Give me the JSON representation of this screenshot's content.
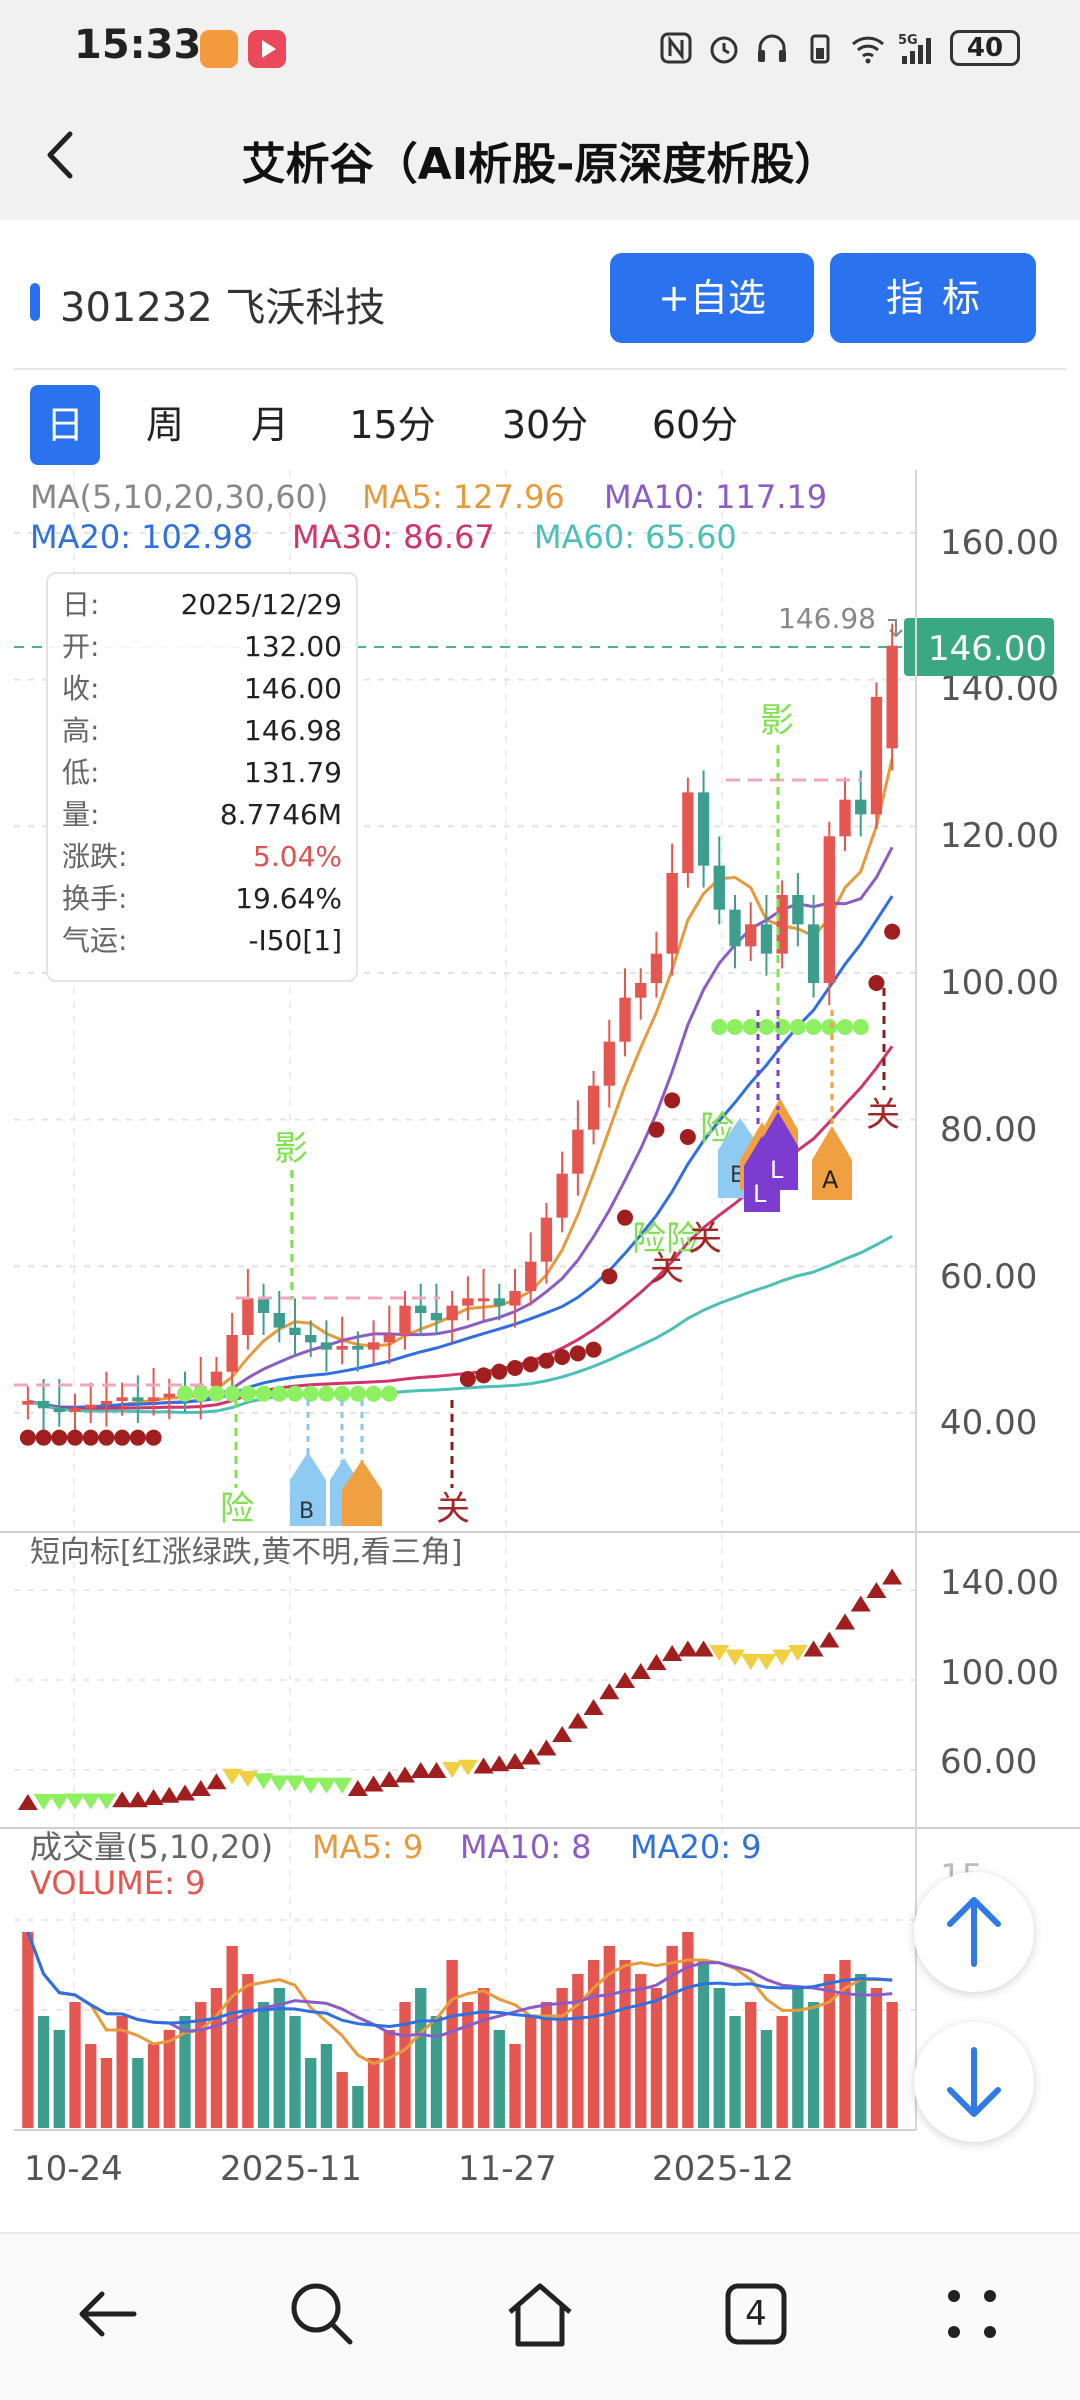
{
  "status_bar": {
    "time": "15:33",
    "battery": "40",
    "network": "5G"
  },
  "title_bar": {
    "title": "艾析谷（AI析股-原深度析股）"
  },
  "stock": {
    "code_name": "301232 飞沃科技",
    "add_watch": "+自选",
    "indicator": "指标"
  },
  "tabs": [
    {
      "label": "日",
      "active": true
    },
    {
      "label": "周"
    },
    {
      "label": "月"
    },
    {
      "label": "15分"
    },
    {
      "label": "30分"
    },
    {
      "label": "60分"
    }
  ],
  "ma_legend": {
    "label": "MA(5,10,20,30,60)",
    "ma5": "MA5: 127.96",
    "ma10": "MA10: 117.19",
    "ma20": "MA20: 102.98",
    "ma30": "MA30: 86.67",
    "ma60": "MA60: 65.60"
  },
  "price_axis": [
    "160.00",
    "140.00",
    "120.00",
    "100.00",
    "80.00",
    "60.00",
    "40.00"
  ],
  "last_price": "146.00",
  "high_marker": "146.98",
  "info": {
    "rows": [
      {
        "k": "日:",
        "v": "2025/12/29"
      },
      {
        "k": "开:",
        "v": "132.00"
      },
      {
        "k": "收:",
        "v": "146.00"
      },
      {
        "k": "高:",
        "v": "146.98"
      },
      {
        "k": "低:",
        "v": "131.79"
      },
      {
        "k": "量:",
        "v": "8.7746M"
      },
      {
        "k": "涨跌:",
        "v": "5.04%",
        "color": "#e05050"
      },
      {
        "k": "换手:",
        "v": "19.64%"
      },
      {
        "k": "气运:",
        "v": "-I50[1]"
      }
    ]
  },
  "signals": {
    "ying": "影",
    "xian": "险",
    "guan": "关",
    "b": "B",
    "l": "L",
    "a": "A"
  },
  "short_panel": {
    "title": "短向标[红涨绿跌,黄不明,看三角]",
    "axis": [
      "140.00",
      "100.00",
      "60.00"
    ]
  },
  "volume_panel": {
    "title": "成交量(5,10,20)",
    "ma5": "MA5: 9",
    "ma10": "MA10: 8",
    "ma20": "MA20: 9",
    "volume": "VOLUME: 9",
    "axis_partial": "15"
  },
  "x_axis": [
    "10-24",
    "2025-11",
    "11-27",
    "2025-12"
  ],
  "nav": {
    "tab_count": "4"
  },
  "colors": {
    "up": "#e4564f",
    "down": "#3d9e8e",
    "ma5": "#e89a3a",
    "ma10": "#8b5cc6",
    "ma20": "#2f6fe0",
    "ma30": "#d0346a",
    "ma60": "#4bbfb8",
    "accent": "#2a72ee"
  }
}
